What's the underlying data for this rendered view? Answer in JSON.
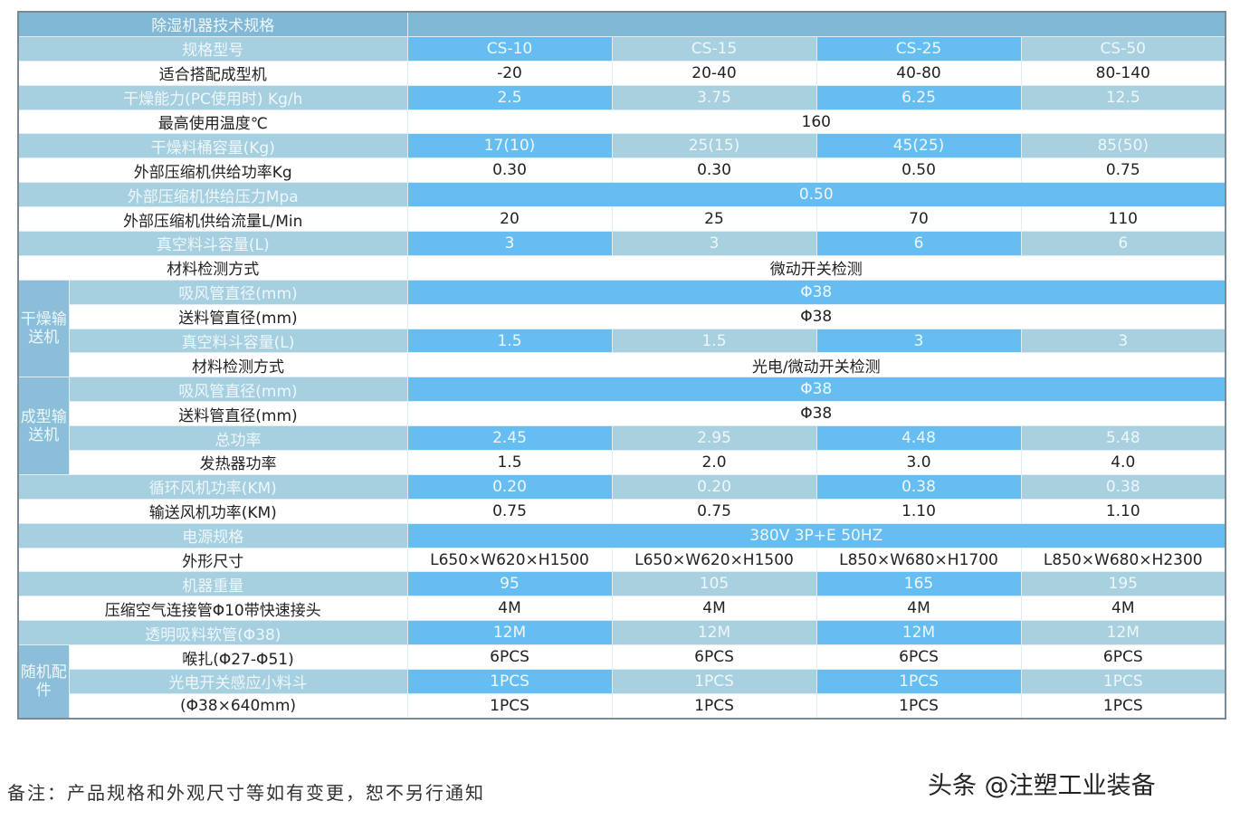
{
  "table": {
    "title": "除湿机器技术规格",
    "models_label": "规格型号",
    "models": [
      "CS-10",
      "CS-15",
      "CS-25",
      "CS-50"
    ],
    "groups": [
      {
        "label": "干燥输送机",
        "start": 9,
        "span": 4
      },
      {
        "label": "成型输送机",
        "start": 13,
        "span": 4
      },
      {
        "label": "随机配件",
        "start": 24,
        "span": 5
      }
    ],
    "rows": [
      {
        "label": "适合搭配成型机",
        "values": [
          "-20",
          "20-40",
          "40-80",
          "80-140"
        ],
        "blue": false
      },
      {
        "label": "干燥能力(PC使用时) Kg/h",
        "values": [
          "2.5",
          "3.75",
          "6.25",
          "12.5"
        ],
        "blue": true
      },
      {
        "label": "最高使用温度℃",
        "merged": "160",
        "blue": false,
        "merged_plain": true
      },
      {
        "label": "干燥料桶容量(Kg)",
        "values": [
          "17(10)",
          "25(15)",
          "45(25)",
          "85(50)"
        ],
        "blue": true
      },
      {
        "label": "外部压缩机供给功率Kg",
        "values": [
          "0.30",
          "0.30",
          "0.50",
          "0.75"
        ],
        "blue": false
      },
      {
        "label": "外部压缩机供给压力Mpa",
        "merged": "0.50",
        "blue": true
      },
      {
        "label": "外部压缩机供给流量L/Min",
        "values": [
          "20",
          "25",
          "70",
          "110"
        ],
        "blue": false
      },
      {
        "label": "真空料斗容量(L)",
        "values": [
          "3",
          "3",
          "6",
          "6"
        ],
        "blue": true
      },
      {
        "label": "材料检测方式",
        "merged": "微动开关检测",
        "blue": false
      },
      {
        "label": "吸风管直径(mm)",
        "merged": "Φ38",
        "blue": true
      },
      {
        "label": "送料管直径(mm)",
        "merged": "Φ38",
        "blue": false
      },
      {
        "label": "真空料斗容量(L)",
        "values": [
          "1.5",
          "1.5",
          "3",
          "3"
        ],
        "blue": true
      },
      {
        "label": "材料检测方式",
        "merged": "光电/微动开关检测",
        "blue": false
      },
      {
        "label": "吸风管直径(mm)",
        "merged": "Φ38",
        "blue": true
      },
      {
        "label": "送料管直径(mm)",
        "merged": "Φ38",
        "blue": false
      },
      {
        "label": "总功率",
        "values": [
          "2.45",
          "2.95",
          "4.48",
          "5.48"
        ],
        "blue": true
      },
      {
        "label": "发热器功率",
        "values": [
          "1.5",
          "2.0",
          "3.0",
          "4.0"
        ],
        "blue": false
      },
      {
        "label": "循环风机功率(KM)",
        "values": [
          "0.20",
          "0.20",
          "0.38",
          "0.38"
        ],
        "blue": true
      },
      {
        "label": "输送风机功率(KM)",
        "values": [
          "0.75",
          "0.75",
          "1.10",
          "1.10"
        ],
        "blue": false
      },
      {
        "label": "电源规格",
        "merged": "380V 3P+E 50HZ",
        "blue": true
      },
      {
        "label": "外形尺寸",
        "values": [
          "L650×W620×H1500",
          "L650×W620×H1500",
          "L850×W680×H1700",
          "L850×W680×H2300"
        ],
        "blue": false
      },
      {
        "label": "机器重量",
        "values": [
          "95",
          "105",
          "165",
          "195"
        ],
        "blue": true
      },
      {
        "label": "压缩空气连接管Φ10带快速接头",
        "values": [
          "4M",
          "4M",
          "4M",
          "4M"
        ],
        "blue": false
      },
      {
        "label": "透明吸料软管(Φ38)",
        "values": [
          "12M",
          "12M",
          "12M",
          "12M"
        ],
        "blue": true
      },
      {
        "label": "喉扎(Φ27-Φ51)",
        "values": [
          "6PCS",
          "6PCS",
          "6PCS",
          "6PCS"
        ],
        "blue": false
      },
      {
        "label": "光电开关感应小料斗",
        "values": [
          "1PCS",
          "1PCS",
          "1PCS",
          "1PCS"
        ],
        "blue": true
      },
      {
        "label": "(Φ38×640mm)",
        "values": [
          "1PCS",
          "1PCS",
          "1PCS",
          "1PCS"
        ],
        "blue": false
      }
    ]
  },
  "note": "备注：产品规格和外观尺寸等如有变更，恕不另行通知",
  "watermark": "头条 @注塑工业装备"
}
